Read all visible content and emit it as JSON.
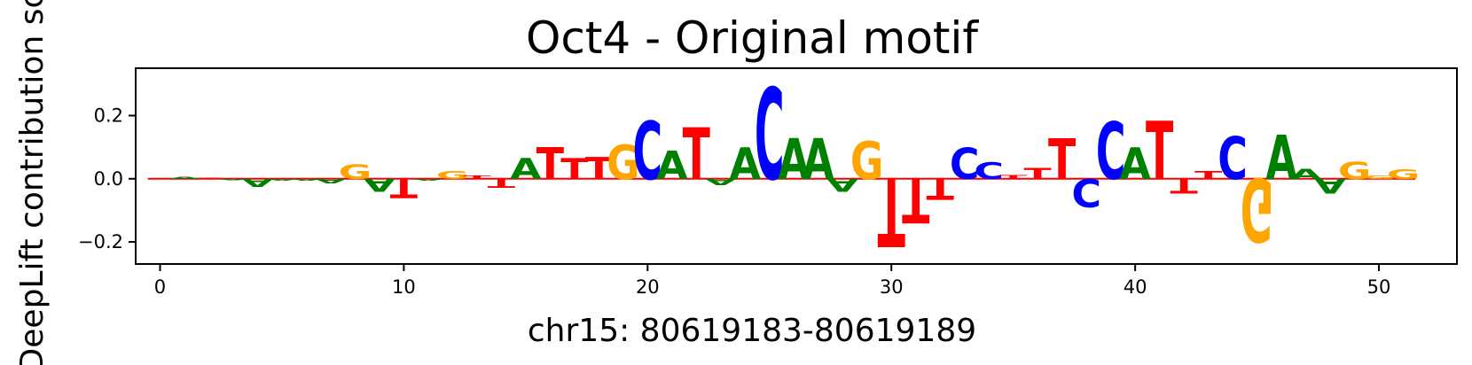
{
  "chart_data": {
    "type": "sequence-logo",
    "title": "Oct4 - Original motif",
    "xlabel": "chr15: 80619183-80619189",
    "ylabel": "DeepLift contribution score",
    "xlim": [
      -1,
      53.2
    ],
    "ylim": [
      -0.27,
      0.35
    ],
    "x_ticks": [
      0,
      10,
      20,
      30,
      40,
      50
    ],
    "y_ticks": [
      -0.2,
      0.0,
      0.2
    ],
    "y_tick_labels": [
      "−0.2",
      "0.0",
      "0.2"
    ],
    "colors": {
      "A": "#008000",
      "C": "#0000ff",
      "G": "#ffa500",
      "T": "#ff0000"
    },
    "letters": [
      {
        "pos": 0,
        "base": "A",
        "value": 0.0
      },
      {
        "pos": 1,
        "base": "A",
        "value": 0.007
      },
      {
        "pos": 2,
        "base": "T",
        "value": 0.004
      },
      {
        "pos": 3,
        "base": "A",
        "value": -0.003
      },
      {
        "pos": 4,
        "base": "A",
        "value": -0.025
      },
      {
        "pos": 5,
        "base": "A",
        "value": -0.005
      },
      {
        "pos": 6,
        "base": "A",
        "value": -0.005
      },
      {
        "pos": 7,
        "base": "A",
        "value": -0.015
      },
      {
        "pos": 8,
        "base": "G",
        "value": 0.045
      },
      {
        "pos": 9,
        "base": "A",
        "value": -0.04
      },
      {
        "pos": 10,
        "base": "T",
        "value": -0.06
      },
      {
        "pos": 11,
        "base": "A",
        "value": -0.005
      },
      {
        "pos": 12,
        "base": "G",
        "value": 0.025
      },
      {
        "pos": 13,
        "base": "T",
        "value": 0.01
      },
      {
        "pos": 14,
        "base": "T",
        "value": -0.028
      },
      {
        "pos": 15,
        "base": "A",
        "value": 0.065
      },
      {
        "pos": 16,
        "base": "T",
        "value": 0.1
      },
      {
        "pos": 17,
        "base": "T",
        "value": 0.065
      },
      {
        "pos": 18,
        "base": "T",
        "value": 0.07
      },
      {
        "pos": 19,
        "base": "G",
        "value": 0.11
      },
      {
        "pos": 20,
        "base": "C",
        "value": 0.185
      },
      {
        "pos": 21,
        "base": "A",
        "value": 0.09
      },
      {
        "pos": 22,
        "base": "T",
        "value": 0.165
      },
      {
        "pos": 23,
        "base": "A",
        "value": -0.02
      },
      {
        "pos": 24,
        "base": "A",
        "value": 0.1
      },
      {
        "pos": 25,
        "base": "C",
        "value": 0.29
      },
      {
        "pos": 26,
        "base": "A",
        "value": 0.13
      },
      {
        "pos": 27,
        "base": "A",
        "value": 0.13
      },
      {
        "pos": 28,
        "base": "A",
        "value": -0.04
      },
      {
        "pos": 29,
        "base": "G",
        "value": 0.12
      },
      {
        "pos": 30,
        "base": "T",
        "value": -0.215
      },
      {
        "pos": 31,
        "base": "T",
        "value": -0.14
      },
      {
        "pos": 32,
        "base": "T",
        "value": -0.065
      },
      {
        "pos": 33,
        "base": "C",
        "value": 0.098
      },
      {
        "pos": 34,
        "base": "C",
        "value": 0.053
      },
      {
        "pos": 35,
        "base": "T",
        "value": 0.012
      },
      {
        "pos": 36,
        "base": "T",
        "value": 0.035
      },
      {
        "pos": 37,
        "base": "T",
        "value": 0.13
      },
      {
        "pos": 38,
        "base": "C",
        "value": -0.09
      },
      {
        "pos": 39,
        "base": "C",
        "value": 0.18
      },
      {
        "pos": 40,
        "base": "A",
        "value": 0.1
      },
      {
        "pos": 41,
        "base": "T",
        "value": 0.185
      },
      {
        "pos": 42,
        "base": "T",
        "value": -0.045
      },
      {
        "pos": 43,
        "base": "T",
        "value": 0.025
      },
      {
        "pos": 44,
        "base": "C",
        "value": 0.135
      },
      {
        "pos": 45,
        "base": "G",
        "value": -0.2
      },
      {
        "pos": 46,
        "base": "A",
        "value": 0.14
      },
      {
        "pos": 47,
        "base": "A",
        "value": 0.032
      },
      {
        "pos": 48,
        "base": "A",
        "value": -0.045
      },
      {
        "pos": 49,
        "base": "G",
        "value": 0.055
      },
      {
        "pos": 50,
        "base": "G",
        "value": 0.01
      },
      {
        "pos": 51,
        "base": "G",
        "value": 0.03
      }
    ]
  }
}
